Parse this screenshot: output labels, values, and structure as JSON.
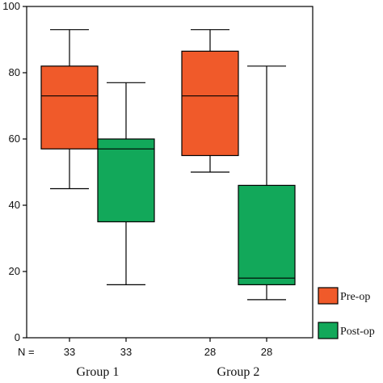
{
  "chart_data": {
    "type": "box",
    "ylim": [
      0,
      100
    ],
    "yticks": [
      0,
      20,
      40,
      60,
      80,
      100
    ],
    "categories": [
      "Group 1",
      "Group 2"
    ],
    "n_prefix": "N =",
    "series": [
      {
        "name": "Pre-op",
        "color": "#f05a2a",
        "boxes": [
          {
            "category": "Group 1",
            "n": "33",
            "min": 45,
            "q1": 57,
            "median": 73,
            "q3": 82,
            "max": 93
          },
          {
            "category": "Group 2",
            "n": "28",
            "min": 50,
            "q1": 55,
            "median": 73,
            "q3": 86.5,
            "max": 93
          }
        ]
      },
      {
        "name": "Post-op",
        "color": "#12a85a",
        "boxes": [
          {
            "category": "Group 1",
            "n": "33",
            "min": 16,
            "q1": 35,
            "median": 57,
            "q3": 60,
            "max": 77
          },
          {
            "category": "Group 2",
            "n": "28",
            "min": 11.5,
            "q1": 16,
            "median": 18,
            "q3": 46,
            "max": 82
          }
        ]
      }
    ],
    "legend_position": "right"
  }
}
